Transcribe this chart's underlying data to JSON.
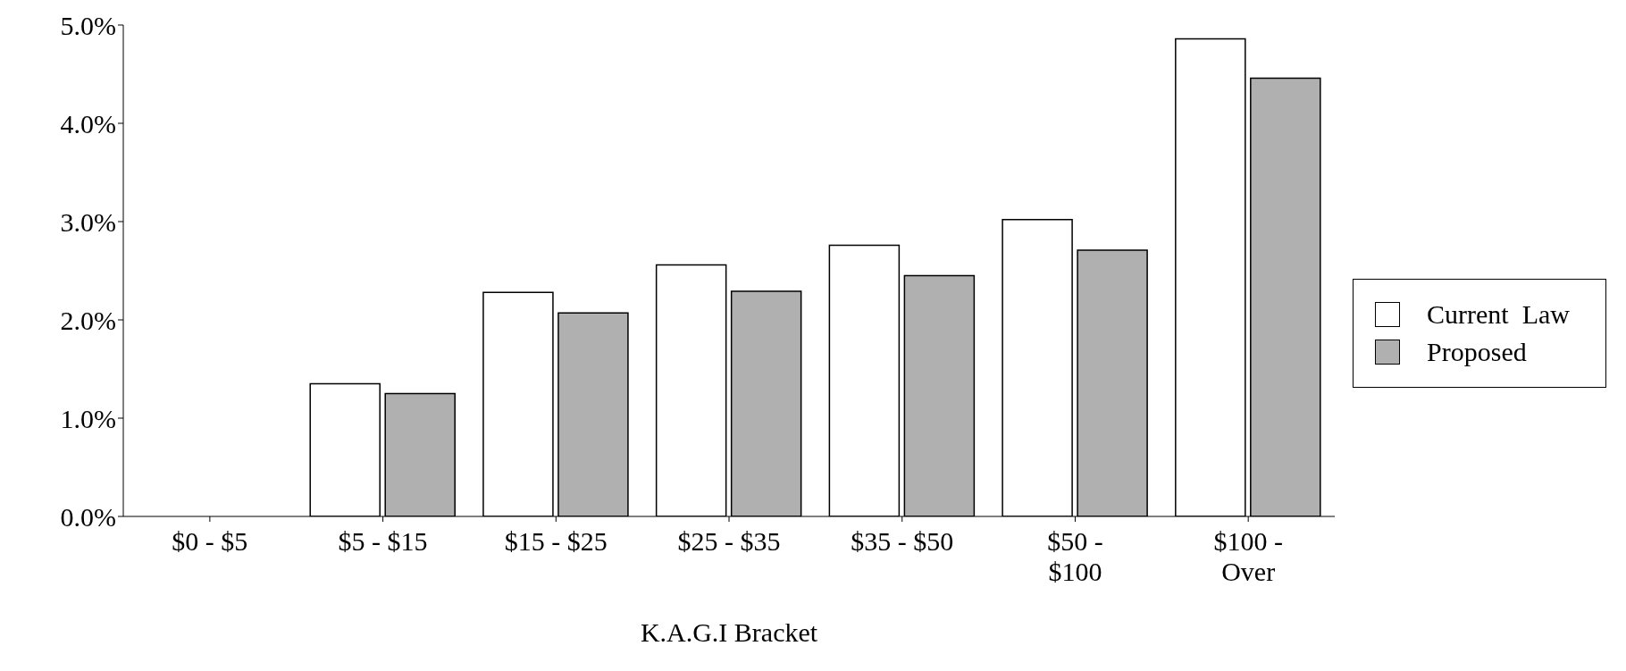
{
  "chart_data": {
    "type": "bar",
    "xlabel": "K.A.G.I  Bracket",
    "categories": [
      "$0 - $5",
      "$5 - $15",
      "$15 - $25",
      "$25 - $35",
      "$35 - $50",
      "$50 -\n$100",
      "$100 -\nOver"
    ],
    "series": [
      {
        "name": "Current  Law",
        "color": "#ffffff",
        "values": [
          0,
          1.35,
          2.28,
          2.56,
          2.76,
          3.02,
          4.86
        ]
      },
      {
        "name": "Proposed",
        "color": "#b0b0b0",
        "values": [
          0,
          1.25,
          2.07,
          2.29,
          2.45,
          2.71,
          4.46
        ]
      }
    ],
    "ylim": [
      0,
      5
    ],
    "yticks": [
      {
        "value": 0,
        "label": "0.0%"
      },
      {
        "value": 1,
        "label": "1.0%"
      },
      {
        "value": 2,
        "label": "2.0%"
      },
      {
        "value": 3,
        "label": "3.0%"
      },
      {
        "value": 4,
        "label": "4.0%"
      },
      {
        "value": 5,
        "label": "5.0%"
      }
    ],
    "grid": false,
    "legend": "right"
  }
}
